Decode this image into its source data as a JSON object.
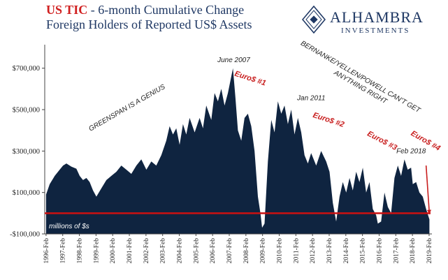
{
  "title": {
    "accent": "US TIC",
    "rest": " - 6-month Cumulative Change",
    "line2": "Foreign Holders of Reported US$ Assets"
  },
  "logo": {
    "name": "ALHAMBRA",
    "sub": "INVESTMENTS"
  },
  "colors": {
    "area": "#0f2440",
    "zero_line": "#cc1111",
    "title": "#1f3864",
    "accent": "#d01f1f"
  },
  "chart_data": {
    "type": "area",
    "units_label": "millions of $s",
    "ylim": [
      -100000,
      800000
    ],
    "yticks": [
      -100000,
      100000,
      300000,
      500000,
      700000
    ],
    "ytick_labels": [
      "-$100,000",
      "$100,000",
      "$300,000",
      "$500,000",
      "$700,000"
    ],
    "xlim": [
      1996.0,
      2019.25
    ],
    "xticks": [
      1996.08,
      1997.08,
      1998.08,
      1999.08,
      2000.08,
      2001.08,
      2002.08,
      2003.08,
      2004.08,
      2005.08,
      2006.08,
      2007.08,
      2008.08,
      2009.08,
      2010.08,
      2011.08,
      2012.08,
      2013.08,
      2014.08,
      2015.08,
      2016.08,
      2017.08,
      2018.08,
      2019.08
    ],
    "xtick_labels": [
      "1996-Feb",
      "1997-Feb",
      "1998-Feb",
      "1999-Feb",
      "2000-Feb",
      "2001-Feb",
      "2002-Feb",
      "2003-Feb",
      "2004-Feb",
      "2005-Feb",
      "2006-Feb",
      "2007-Feb",
      "2008-Feb",
      "2009-Feb",
      "2010-Feb",
      "2011-Feb",
      "2012-Feb",
      "2013-Feb",
      "2014-Feb",
      "2015-Feb",
      "2016-Feb",
      "2017-Feb",
      "2018-Feb",
      "2019-Feb"
    ],
    "zero_line": 0,
    "x": [
      1996.08,
      1996.3,
      1996.6,
      1996.9,
      1997.1,
      1997.3,
      1997.6,
      1997.9,
      1998.1,
      1998.3,
      1998.5,
      1998.7,
      1998.9,
      1999.1,
      1999.4,
      1999.7,
      2000.0,
      2000.3,
      2000.6,
      2000.9,
      2001.2,
      2001.5,
      2001.8,
      2002.1,
      2002.4,
      2002.7,
      2003.0,
      2003.3,
      2003.5,
      2003.7,
      2003.9,
      2004.1,
      2004.3,
      2004.5,
      2004.7,
      2005.0,
      2005.3,
      2005.5,
      2005.7,
      2006.0,
      2006.2,
      2006.4,
      2006.6,
      2006.8,
      2007.0,
      2007.15,
      2007.3,
      2007.45,
      2007.6,
      2007.8,
      2008.0,
      2008.2,
      2008.4,
      2008.6,
      2008.8,
      2008.95,
      2009.05,
      2009.2,
      2009.4,
      2009.6,
      2009.8,
      2010.0,
      2010.2,
      2010.4,
      2010.6,
      2010.8,
      2011.0,
      2011.2,
      2011.4,
      2011.6,
      2011.8,
      2012.0,
      2012.3,
      2012.6,
      2012.9,
      2013.1,
      2013.3,
      2013.5,
      2013.7,
      2013.9,
      2014.1,
      2014.3,
      2014.5,
      2014.7,
      2014.9,
      2015.1,
      2015.3,
      2015.5,
      2015.7,
      2015.9,
      2016.0,
      2016.2,
      2016.4,
      2016.6,
      2016.8,
      2017.0,
      2017.2,
      2017.4,
      2017.6,
      2017.8,
      2018.0,
      2018.1,
      2018.3,
      2018.5,
      2018.7,
      2018.9,
      2019.1
    ],
    "values": [
      90000,
      140000,
      180000,
      210000,
      230000,
      240000,
      225000,
      215000,
      180000,
      160000,
      170000,
      150000,
      110000,
      80000,
      120000,
      160000,
      180000,
      200000,
      230000,
      210000,
      190000,
      230000,
      260000,
      210000,
      250000,
      230000,
      280000,
      350000,
      420000,
      380000,
      410000,
      330000,
      430000,
      380000,
      460000,
      390000,
      460000,
      410000,
      520000,
      450000,
      580000,
      540000,
      600000,
      520000,
      580000,
      640000,
      700000,
      560000,
      400000,
      350000,
      460000,
      480000,
      420000,
      300000,
      80000,
      0,
      -70000,
      -50000,
      250000,
      450000,
      390000,
      540000,
      480000,
      520000,
      430000,
      500000,
      380000,
      460000,
      390000,
      280000,
      240000,
      290000,
      230000,
      300000,
      250000,
      200000,
      50000,
      -40000,
      80000,
      150000,
      100000,
      170000,
      110000,
      200000,
      150000,
      220000,
      100000,
      150000,
      20000,
      -10000,
      -50000,
      -40000,
      100000,
      30000,
      0,
      170000,
      230000,
      180000,
      260000,
      210000,
      220000,
      140000,
      150000,
      100000,
      80000,
      20000,
      -30000
    ],
    "annotations": [
      {
        "text": "GREENSPAN IS A GENIUS",
        "x": 2001.0,
        "y": 500000,
        "style": "dark",
        "rotate": -30
      },
      {
        "text": "June 2007",
        "x": 2007.35,
        "y": 730000,
        "style": "dark",
        "rotate": 0
      },
      {
        "text": "Euro$ #1",
        "x": 2008.3,
        "y": 640000,
        "style": "red",
        "rotate": 18
      },
      {
        "text": "BERNANKE/YELLEN/POWELL CAN'T GET",
        "x": 2014.9,
        "y": 650000,
        "style": "dark",
        "rotate": 30
      },
      {
        "text": "ANYTHING RIGHT",
        "x": 2014.9,
        "y": 600000,
        "style": "dark",
        "rotate": 30
      },
      {
        "text": "Jan 2011",
        "x": 2012.0,
        "y": 545000,
        "style": "dark",
        "rotate": 0
      },
      {
        "text": "Euro$ #2",
        "x": 2013.0,
        "y": 440000,
        "style": "red",
        "rotate": 18
      },
      {
        "text": "Euro$ #3",
        "x": 2016.2,
        "y": 340000,
        "style": "red",
        "rotate": 28
      },
      {
        "text": "Feb 2018",
        "x": 2018.0,
        "y": 290000,
        "style": "dark",
        "rotate": 0
      },
      {
        "text": "Euro$ #4",
        "x": 2018.8,
        "y": 340000,
        "style": "red",
        "rotate": 30
      }
    ]
  }
}
